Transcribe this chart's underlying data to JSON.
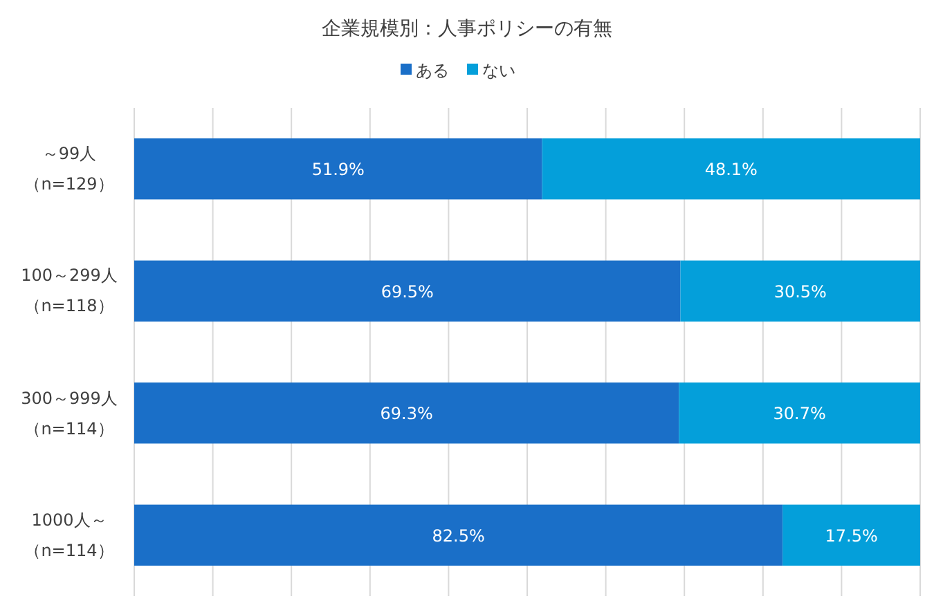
{
  "chart_data": {
    "type": "bar",
    "orientation": "horizontal",
    "stacked": true,
    "title": "企業規模別：人事ポリシーの有無",
    "categories": [
      "～99人（n=129）",
      "100～299人（n=118）",
      "300～999人（n=114）",
      "1000人～（n=114）"
    ],
    "series": [
      {
        "name": "ある",
        "color": "#1a6fc8",
        "values": [
          51.9,
          69.5,
          69.3,
          82.5
        ],
        "value_labels": [
          "51.9%",
          "69.5%",
          "69.3%",
          "82.5%"
        ]
      },
      {
        "name": "ない",
        "color": "#049fda",
        "values": [
          48.1,
          30.5,
          30.7,
          17.5
        ],
        "value_labels": [
          "48.1%",
          "30.5%",
          "30.7%",
          "17.5%"
        ]
      }
    ],
    "xlim": [
      0,
      100
    ],
    "xticks": [
      {
        "value": 0,
        "label": null
      },
      {
        "value": 10,
        "label": null
      },
      {
        "value": 20,
        "label": null
      },
      {
        "value": 30,
        "label": null
      },
      {
        "value": 40,
        "label": null
      },
      {
        "value": 50,
        "label": null
      },
      {
        "value": 60,
        "label": null
      },
      {
        "value": 70,
        "label": null
      },
      {
        "value": 80,
        "label": null
      },
      {
        "value": 90,
        "label": null
      },
      {
        "value": 100,
        "label": null
      }
    ],
    "grid": "x",
    "legend": "top",
    "tick_labels": "y"
  }
}
